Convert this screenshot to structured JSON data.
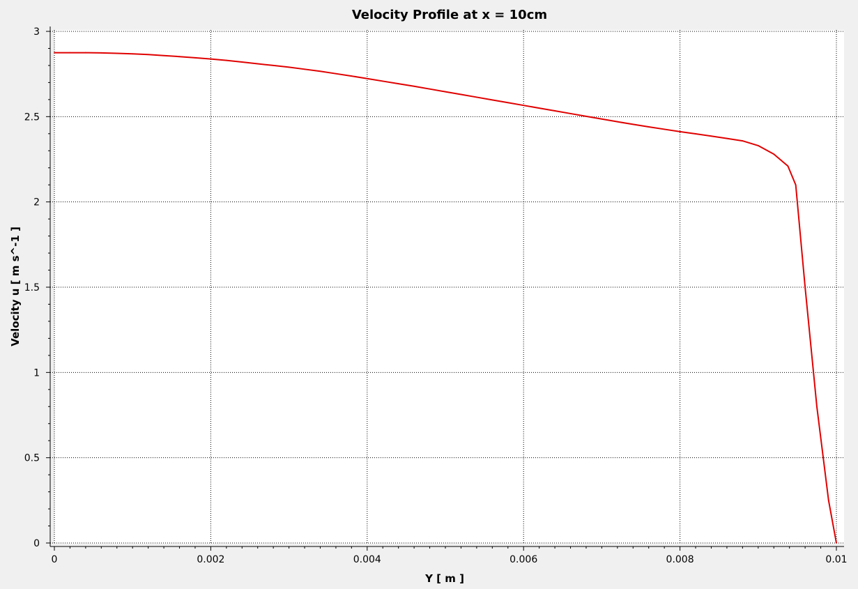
{
  "chart_data": {
    "type": "line",
    "title": "Velocity Profile at x = 10cm",
    "xlabel": "Y [ m ]",
    "ylabel": "Velocity u [ m s^-1 ]",
    "xlim": [
      0,
      0.01
    ],
    "ylim": [
      0,
      3
    ],
    "xticks": [
      {
        "value": 0,
        "label": "0"
      },
      {
        "value": 0.002,
        "label": "0.002"
      },
      {
        "value": 0.004,
        "label": "0.004"
      },
      {
        "value": 0.006,
        "label": "0.006"
      },
      {
        "value": 0.008,
        "label": "0.008"
      },
      {
        "value": 0.01,
        "label": "0.01"
      }
    ],
    "yticks": [
      {
        "value": 0,
        "label": "0"
      },
      {
        "value": 0.5,
        "label": "0.5"
      },
      {
        "value": 1,
        "label": "1"
      },
      {
        "value": 1.5,
        "label": "1.5"
      },
      {
        "value": 2,
        "label": "2"
      },
      {
        "value": 2.5,
        "label": "2.5"
      },
      {
        "value": 3,
        "label": "3"
      }
    ],
    "grid": true,
    "legend": "none",
    "series": [
      {
        "color": "#e00000",
        "x": [
          0,
          0.0002,
          0.0004,
          0.0006,
          0.0008,
          0.001,
          0.0012,
          0.0014,
          0.0016,
          0.0018,
          0.002,
          0.0022,
          0.0024,
          0.0026,
          0.0028,
          0.003,
          0.0032,
          0.0034,
          0.0036,
          0.0038,
          0.004,
          0.0042,
          0.0044,
          0.0046,
          0.0048,
          0.005,
          0.0052,
          0.0054,
          0.0056,
          0.0058,
          0.006,
          0.0062,
          0.0064,
          0.0066,
          0.0068,
          0.007,
          0.0072,
          0.0074,
          0.0076,
          0.0078,
          0.008,
          0.0082,
          0.0084,
          0.0086,
          0.0088,
          0.009,
          0.0092,
          0.00938,
          0.00948,
          0.0096,
          0.00975,
          0.0099,
          0.01
        ],
        "y": [
          2.875,
          2.875,
          2.875,
          2.874,
          2.871,
          2.868,
          2.864,
          2.858,
          2.852,
          2.845,
          2.838,
          2.83,
          2.82,
          2.81,
          2.8,
          2.79,
          2.778,
          2.766,
          2.752,
          2.738,
          2.723,
          2.708,
          2.693,
          2.678,
          2.662,
          2.646,
          2.63,
          2.614,
          2.598,
          2.582,
          2.566,
          2.55,
          2.534,
          2.518,
          2.502,
          2.486,
          2.47,
          2.455,
          2.44,
          2.426,
          2.412,
          2.399,
          2.386,
          2.372,
          2.358,
          2.33,
          2.28,
          2.21,
          2.1,
          1.5,
          0.8,
          0.25,
          0.0
        ]
      }
    ]
  }
}
